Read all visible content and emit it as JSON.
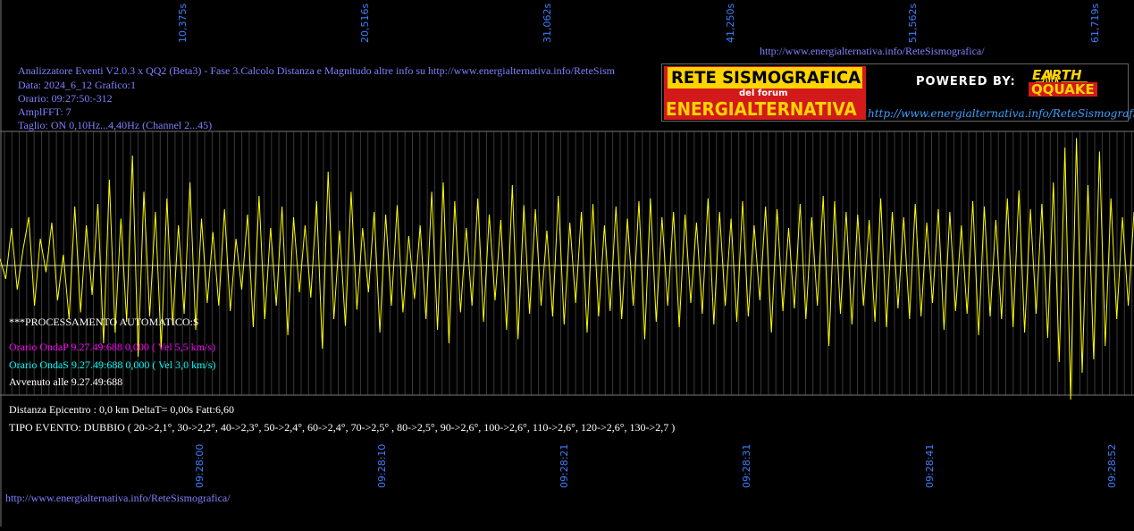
{
  "header": {
    "lines": [
      "Analizzatore Eventi V2.0.3 x QQ2 (Beta3) - Fase 3.Calcolo Distanza e Magnitudo altre info su http://www.energialternativa.info/ReteSism",
      "Data: 2024_6_12 Grafico:1",
      "Orario: 09:27:50:-312",
      "AmplFFT: 7",
      "Taglio: ON 0,10Hz...4,40Hz       (Channel 2...45)"
    ],
    "top_url": "http://www.energialternativa.info/ReteSismografica/"
  },
  "logo": {
    "title": "RETE SISMOGRAFICA",
    "subtitle": "del forum",
    "main": "ENERGIALTERNATIVA",
    "powered_by": "POWERED BY:",
    "brand_top": "EARTH",
    "brand_bottom": "QQUAKE",
    "url": "http://www.energialternativa.info/ReteSismografica"
  },
  "processing": {
    "title": "***PROCESSAMENTO AUTOMATICO:S",
    "onda_p": "Orario OndaP 9.27.49:688  0,000 ( Vel 5,5 km/s)",
    "onda_s": "Orario OndaS 9.27.49:688  0,000 ( Vel 3,0 km/s)",
    "avvenuto": "Avvenuto alle 9.27.49:688"
  },
  "result": {
    "distanza": "Distanza Epicentro : 0,0 km DeltaT= 0,00s  Fatt:6,60",
    "tipo_evento": "TIPO EVENTO: DUBBIO ( 20->2,1°, 30->2,2°, 40->2,3°, 50->2,4°, 60->2,4°, 70->2,5° , 80->2,5°, 90->2,6°, 100->2,6°, 110->2,6°, 120->2,6°, 130->2,7 )"
  },
  "footer": {
    "url": "http://www.energialternativa.info/ReteSismografica/"
  },
  "colors": {
    "background": "#000000",
    "trace": "#ffff00",
    "grid": "#777777",
    "axis_label": "#3f7fff",
    "header_text": "#8080ff",
    "onda_p": "#ff00ff",
    "onda_s": "#00ffff"
  },
  "chart_data": {
    "type": "line",
    "title": "",
    "xlabel": "",
    "ylabel": "",
    "top_tick_labels": [
      "10,375s",
      "20,516s",
      "31,062s",
      "41,250s",
      "51,562s",
      "61,719s"
    ],
    "bottom_tick_labels": [
      "09:28:00",
      "09:28:10",
      "09:28:21",
      "09:28:31",
      "09:28:41",
      "09:28:52"
    ],
    "series": [
      {
        "values": [
          0.05,
          -0.1,
          0.28,
          -0.18,
          0.12,
          0.36,
          -0.3,
          0.2,
          -0.05,
          0.32,
          -0.26,
          0.08,
          -0.4,
          0.44,
          -0.35,
          0.3,
          -0.22,
          0.46,
          -0.58,
          0.64,
          -0.5,
          0.35,
          -0.42,
          0.82,
          -0.68,
          0.55,
          -0.38,
          0.4,
          -0.62,
          0.5,
          -0.44,
          0.3,
          -0.36,
          0.62,
          -0.48,
          0.35,
          -0.28,
          0.25,
          -0.3,
          0.42,
          -0.34,
          0.2,
          -0.18,
          0.38,
          -0.46,
          0.52,
          -0.4,
          0.28,
          -0.3,
          0.44,
          -0.52,
          0.36,
          -0.2,
          0.3,
          -0.24,
          0.48,
          -0.62,
          0.7,
          -0.4,
          0.26,
          -0.45,
          0.55,
          -0.33,
          0.28,
          -0.2,
          0.4,
          -0.5,
          0.38,
          -0.3,
          0.45,
          -0.35,
          0.22,
          -0.25,
          0.3,
          -0.4,
          0.55,
          -0.48,
          0.62,
          -0.58,
          0.48,
          -0.35,
          0.28,
          -0.3,
          0.5,
          -0.42,
          0.38,
          -0.26,
          0.34,
          -0.48,
          0.6,
          -0.55,
          0.45,
          -0.36,
          0.42,
          -0.3,
          0.26,
          -0.38,
          0.52,
          -0.44,
          0.32,
          -0.28,
          0.4,
          -0.5,
          0.46,
          -0.38,
          0.3,
          -0.34,
          0.44,
          -0.4,
          0.35,
          -0.3,
          0.48,
          -0.55,
          0.5,
          -0.42,
          0.36,
          -0.3,
          0.4,
          -0.46,
          0.38,
          -0.28,
          0.32,
          -0.36,
          0.5,
          -0.44,
          0.4,
          -0.3,
          0.35,
          -0.42,
          0.48,
          -0.38,
          0.3,
          -0.26,
          0.44,
          -0.5,
          0.42,
          -0.34,
          0.28,
          -0.32,
          0.46,
          -0.4,
          0.36,
          -0.3,
          0.52,
          -0.6,
          0.48,
          -0.36,
          0.4,
          -0.44,
          0.38,
          -0.3,
          0.34,
          -0.42,
          0.5,
          -0.46,
          0.4,
          -0.32,
          0.36,
          -0.4,
          0.46,
          -0.38,
          0.32,
          -0.28,
          0.42,
          -0.48,
          0.4,
          -0.34,
          0.3,
          -0.36,
          0.48,
          -0.52,
          0.44,
          -0.38,
          0.34,
          -0.4,
          0.5,
          -0.46,
          0.56,
          -0.5,
          0.42,
          -0.36,
          0.46,
          -0.54,
          0.62,
          -0.72,
          0.88,
          -1.0,
          0.95,
          -0.8,
          0.6,
          -0.7,
          0.85,
          -0.6,
          0.5,
          -0.4,
          0.36,
          -0.3,
          0.4
        ]
      }
    ],
    "ylim": [
      -1,
      1
    ]
  }
}
